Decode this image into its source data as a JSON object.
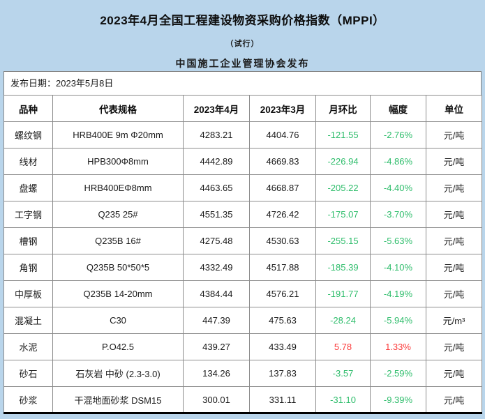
{
  "header": {
    "title": "2023年4月全国工程建设物资采购价格指数（MPPI）",
    "subtitle": "（试行）",
    "publisher": "中国施工企业管理协会发布",
    "publish_date": "发布日期：2023年5月8日"
  },
  "colors": {
    "header_background": "#b9d5eb",
    "decrease_green": "#2ebd6b",
    "increase_red": "#fb3b3b",
    "grid_line": "#8c8c8c"
  },
  "table": {
    "columns": [
      "品种",
      "代表规格",
      "2023年4月",
      "2023年3月",
      "月环比",
      "幅度",
      "单位"
    ],
    "rows": [
      {
        "variety": "螺纹钢",
        "spec": "HRB400E 9m Φ20mm",
        "apr": "4283.21",
        "mar": "4404.76",
        "mom": "-121.55",
        "pct": "-2.76%",
        "unit": "元/吨",
        "trend": "down"
      },
      {
        "variety": "线材",
        "spec": "HPB300Φ8mm",
        "apr": "4442.89",
        "mar": "4669.83",
        "mom": "-226.94",
        "pct": "-4.86%",
        "unit": "元/吨",
        "trend": "down"
      },
      {
        "variety": "盘螺",
        "spec": "HRB400EΦ8mm",
        "apr": "4463.65",
        "mar": "4668.87",
        "mom": "-205.22",
        "pct": "-4.40%",
        "unit": "元/吨",
        "trend": "down"
      },
      {
        "variety": "工字钢",
        "spec": "Q235 25#",
        "apr": "4551.35",
        "mar": "4726.42",
        "mom": "-175.07",
        "pct": "-3.70%",
        "unit": "元/吨",
        "trend": "down"
      },
      {
        "variety": "槽钢",
        "spec": "Q235B 16#",
        "apr": "4275.48",
        "mar": "4530.63",
        "mom": "-255.15",
        "pct": "-5.63%",
        "unit": "元/吨",
        "trend": "down"
      },
      {
        "variety": "角钢",
        "spec": "Q235B 50*50*5",
        "apr": "4332.49",
        "mar": "4517.88",
        "mom": "-185.39",
        "pct": "-4.10%",
        "unit": "元/吨",
        "trend": "down"
      },
      {
        "variety": "中厚板",
        "spec": "Q235B 14-20mm",
        "apr": "4384.44",
        "mar": "4576.21",
        "mom": "-191.77",
        "pct": "-4.19%",
        "unit": "元/吨",
        "trend": "down"
      },
      {
        "variety": "混凝土",
        "spec": "C30",
        "apr": "447.39",
        "mar": "475.63",
        "mom": "-28.24",
        "pct": "-5.94%",
        "unit": "元/m³",
        "trend": "down"
      },
      {
        "variety": "水泥",
        "spec": "P.O42.5",
        "apr": "439.27",
        "mar": "433.49",
        "mom": "5.78",
        "pct": "1.33%",
        "unit": "元/吨",
        "trend": "up"
      },
      {
        "variety": "砂石",
        "spec": "石灰岩 中砂 (2.3-3.0)",
        "apr": "134.26",
        "mar": "137.83",
        "mom": "-3.57",
        "pct": "-2.59%",
        "unit": "元/吨",
        "trend": "down"
      },
      {
        "variety": "砂浆",
        "spec": "干混地面砂浆 DSM15",
        "apr": "300.01",
        "mar": "331.11",
        "mom": "-31.10",
        "pct": "-9.39%",
        "unit": "元/吨",
        "trend": "down"
      }
    ]
  }
}
